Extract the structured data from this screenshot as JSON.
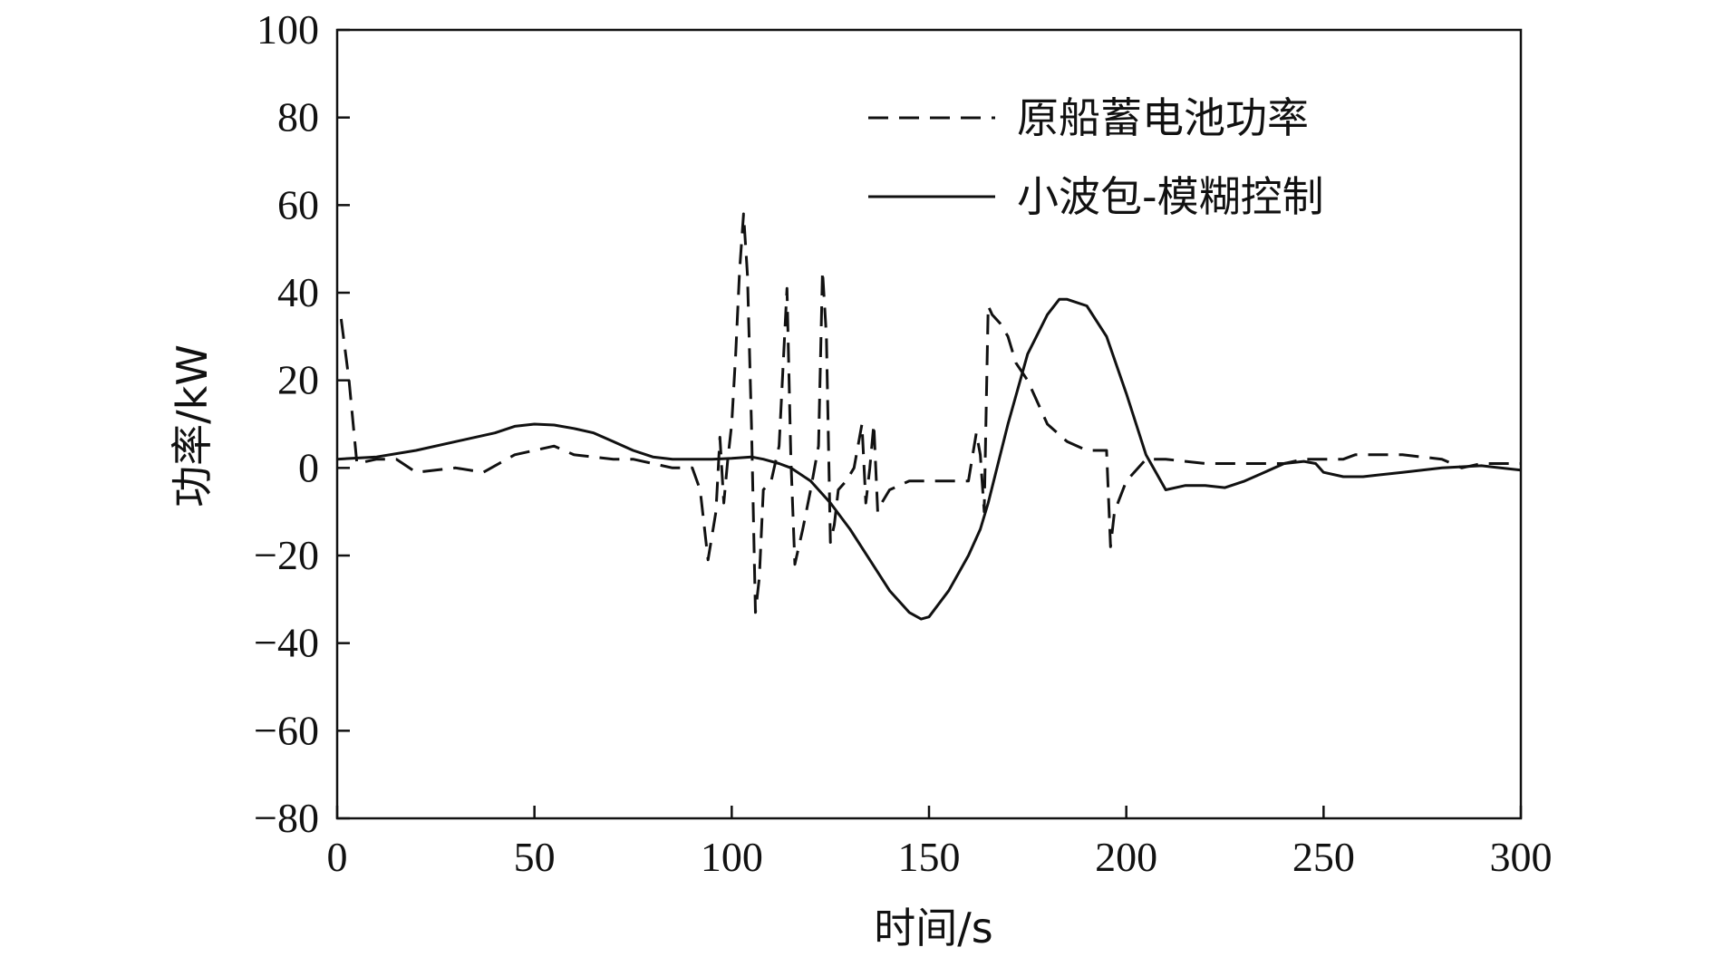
{
  "chart_data": {
    "type": "line",
    "title": "",
    "xlabel": "时间/s",
    "ylabel": "功率/kW",
    "xlim": [
      0,
      300
    ],
    "ylim": [
      -80,
      100
    ],
    "xticks": [
      0,
      50,
      100,
      150,
      200,
      250,
      300
    ],
    "yticks": [
      -80,
      -60,
      -40,
      -20,
      0,
      20,
      40,
      60,
      80,
      100
    ],
    "xtick_labels": [
      "0",
      "50",
      "100",
      "150",
      "200",
      "250",
      "300"
    ],
    "ytick_labels": [
      "−80",
      "−60",
      "−40",
      "−20",
      "0",
      "20",
      "40",
      "60",
      "80",
      "100"
    ],
    "grid": false,
    "legend_position": "top-right",
    "series": [
      {
        "name": "原船蓄电池功率",
        "style": "dashed",
        "color": "#111111",
        "x": [
          1,
          3,
          5,
          10,
          15,
          20,
          30,
          37,
          45,
          55,
          60,
          70,
          75,
          85,
          90,
          92,
          94,
          96,
          97,
          98,
          99,
          100,
          101,
          102,
          103,
          104,
          105,
          106,
          107,
          108,
          110,
          112,
          114,
          115,
          116,
          117,
          118,
          120,
          122,
          123,
          124,
          125,
          126,
          127,
          129,
          131,
          133,
          134,
          135,
          136,
          137,
          138,
          140,
          145,
          150,
          155,
          160,
          162,
          163,
          164,
          165,
          166,
          168,
          170,
          172,
          175,
          180,
          185,
          190,
          195,
          196,
          197,
          200,
          205,
          210,
          220,
          240,
          245,
          250,
          255,
          258,
          260,
          270,
          280,
          285,
          290,
          300
        ],
        "y": [
          34,
          20,
          1,
          2,
          2,
          -1,
          0,
          -1,
          3,
          5,
          3,
          2,
          2,
          0,
          0,
          -5,
          -21,
          -10,
          7,
          -8,
          2,
          10,
          26,
          45,
          58,
          44,
          10,
          -33,
          -25,
          -5,
          -3,
          5,
          41,
          2,
          -22,
          -18,
          -14,
          -5,
          5,
          45,
          30,
          -17,
          -13,
          -5,
          -3,
          0,
          10,
          -8,
          0,
          10,
          -10,
          -8,
          -5,
          -3,
          -3,
          -3,
          -3,
          8,
          3,
          -10,
          37,
          35,
          33,
          30,
          24,
          20,
          10,
          6,
          4,
          4,
          -18,
          -10,
          -3,
          2,
          2,
          1,
          1,
          2,
          2,
          2,
          3,
          3,
          3,
          2,
          0,
          1,
          1
        ]
      },
      {
        "name": "小波包-模糊控制",
        "style": "solid",
        "color": "#111111",
        "x": [
          0,
          10,
          20,
          30,
          40,
          45,
          50,
          55,
          60,
          65,
          70,
          75,
          80,
          85,
          90,
          95,
          100,
          105,
          108,
          112,
          115,
          120,
          125,
          130,
          135,
          140,
          145,
          148,
          150,
          155,
          160,
          163,
          165,
          170,
          175,
          180,
          183,
          185,
          190,
          195,
          200,
          205,
          210,
          215,
          220,
          225,
          230,
          235,
          240,
          245,
          248,
          250,
          255,
          260,
          270,
          280,
          290,
          300
        ],
        "y": [
          2,
          2.5,
          4,
          6,
          8,
          9.5,
          10,
          9.8,
          9,
          8,
          6,
          4,
          2.5,
          2,
          2,
          2,
          2.2,
          2.5,
          2,
          1,
          0,
          -3,
          -8,
          -14,
          -21,
          -28,
          -33,
          -34.5,
          -34,
          -28,
          -20,
          -14,
          -8,
          10,
          26,
          35,
          38.5,
          38.5,
          37,
          30,
          17,
          3,
          -5,
          -4,
          -4,
          -4.5,
          -3,
          -1,
          1,
          1.5,
          1,
          -1,
          -2,
          -2,
          -1,
          0,
          0.5,
          -0.5
        ]
      }
    ]
  }
}
